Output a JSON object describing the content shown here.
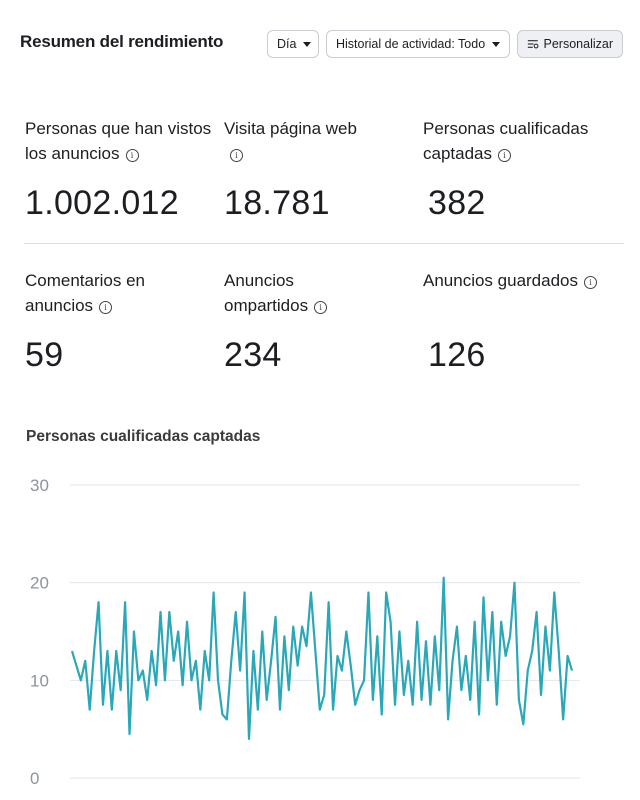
{
  "header": {
    "title": "Resumen del rendimiento",
    "day_label": "Día",
    "history_label": "Historial de actividad: Todo",
    "customize_label": "Personalizar"
  },
  "metrics": [
    {
      "label": "Personas que han vistos los anuncios",
      "value": "1.002.012"
    },
    {
      "label": "Visita página web",
      "value": "18.781"
    },
    {
      "label": "Personas cualificadas captadas",
      "value": "382"
    },
    {
      "label": "Comentarios en anuncios",
      "value": "59"
    },
    {
      "label": "Anuncios ompartidos",
      "value": "234"
    },
    {
      "label": "Anuncios guardados",
      "value": "126"
    }
  ],
  "chart_data": {
    "type": "line",
    "title": "Personas cualificadas captadas",
    "ylim": [
      0,
      30
    ],
    "yticks": [
      "0",
      "10",
      "20",
      "30"
    ],
    "color": "#2aa8b8",
    "grid": true,
    "values": [
      13,
      11.5,
      10,
      12,
      7,
      13,
      18,
      7.5,
      13,
      7,
      13,
      9,
      18,
      4.5,
      15,
      10,
      11,
      8,
      13,
      9.5,
      17,
      10,
      17,
      12,
      15,
      9.5,
      16,
      10,
      12,
      7,
      13,
      10,
      19,
      10,
      6.5,
      6,
      12,
      17,
      11,
      19,
      4,
      13,
      7,
      15,
      8,
      12,
      16.5,
      7,
      14.5,
      9,
      15.5,
      11.5,
      15.5,
      13.5,
      19,
      13,
      7,
      8.5,
      18,
      7,
      12.5,
      11,
      15,
      11.5,
      7.5,
      9,
      10,
      19,
      8,
      14.5,
      6.5,
      19,
      16,
      7.5,
      15,
      8.5,
      12,
      7.5,
      16,
      8,
      14,
      7.5,
      14.5,
      9,
      20.5,
      6,
      12,
      15.5,
      9,
      12.5,
      8,
      16,
      6.5,
      18.5,
      10,
      17,
      7.5,
      16,
      12.5,
      14.5,
      20,
      8,
      5.5,
      11,
      13,
      17,
      8.5,
      15.5,
      11,
      19,
      13,
      6,
      12.5,
      11
    ]
  }
}
